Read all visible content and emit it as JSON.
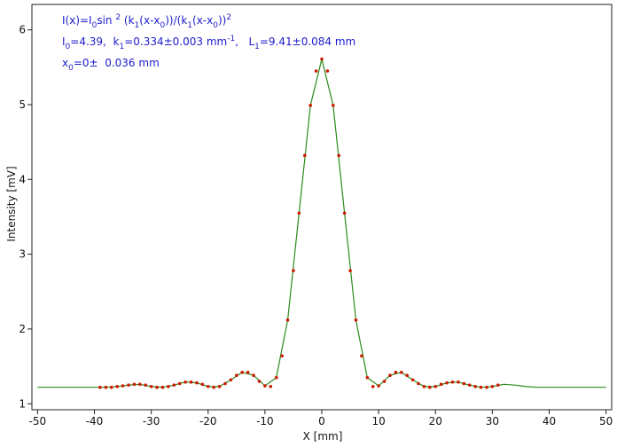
{
  "chart_data": {
    "type": "scatter",
    "xlabel": "X [mm]",
    "ylabel": "Intensity [mV]",
    "xlim": [
      -51,
      51
    ],
    "ylim": [
      0.92,
      6.34
    ],
    "xticks": [
      -50,
      -40,
      -30,
      -20,
      -10,
      0,
      10,
      20,
      30,
      40,
      50
    ],
    "yticks": [
      1,
      2,
      3,
      4,
      5,
      6
    ],
    "annotations": [
      [
        {
          "text": "I(x)=I"
        },
        {
          "text": "0",
          "shift": "sub"
        },
        {
          "text": "sin "
        },
        {
          "text": "2",
          "shift": "sup"
        },
        {
          "text": " (k"
        },
        {
          "text": "1",
          "shift": "sub"
        },
        {
          "text": "(x-x"
        },
        {
          "text": "0",
          "shift": "sub"
        },
        {
          "text": "))/(k"
        },
        {
          "text": "1",
          "shift": "sub"
        },
        {
          "text": "(x-x"
        },
        {
          "text": "0",
          "shift": "sub"
        },
        {
          "text": "))"
        },
        {
          "text": "2",
          "shift": "sup"
        }
      ],
      [
        {
          "text": "I"
        },
        {
          "text": "0",
          "shift": "sub"
        },
        {
          "text": "=4.39,  k"
        },
        {
          "text": "1",
          "shift": "sub"
        },
        {
          "text": "=0.334±0.003 mm"
        },
        {
          "text": "-1",
          "shift": "sup"
        },
        {
          "text": ",   L"
        },
        {
          "text": "1",
          "shift": "sub"
        },
        {
          "text": "=9.41±0.084 mm"
        }
      ],
      [
        {
          "text": "x"
        },
        {
          "text": "0",
          "shift": "sub"
        },
        {
          "text": "=0±  0.036 mm"
        }
      ]
    ],
    "text_color": "#1c1ccc",
    "series": [
      {
        "style": "line",
        "color": "#2b8a1c",
        "x": [
          -50,
          -48,
          -46,
          -44,
          -42,
          -40,
          -38,
          -36,
          -34,
          -32,
          -30,
          -28,
          -26,
          -24,
          -22,
          -20,
          -18,
          -16,
          -14,
          -12,
          -10,
          -8,
          -6,
          -4,
          -2,
          0,
          2,
          4,
          6,
          8,
          10,
          12,
          14,
          16,
          18,
          20,
          22,
          24,
          26,
          28,
          30,
          32,
          34,
          36,
          38,
          40,
          42,
          44,
          46,
          48,
          50
        ],
        "values": [
          1.22,
          1.22,
          1.22,
          1.22,
          1.22,
          1.22,
          1.22,
          1.23,
          1.25,
          1.26,
          1.23,
          1.22,
          1.25,
          1.29,
          1.28,
          1.23,
          1.23,
          1.32,
          1.42,
          1.38,
          1.24,
          1.35,
          2.12,
          3.55,
          4.99,
          5.61,
          4.99,
          3.55,
          2.12,
          1.35,
          1.24,
          1.38,
          1.42,
          1.32,
          1.23,
          1.23,
          1.28,
          1.29,
          1.25,
          1.22,
          1.23,
          1.26,
          1.25,
          1.23,
          1.22,
          1.22,
          1.22,
          1.22,
          1.22,
          1.22,
          1.22
        ]
      },
      {
        "style": "dots",
        "color": "#cc1a00",
        "x": [
          -39,
          -38,
          -37,
          -36,
          -35,
          -34,
          -33,
          -32,
          -31,
          -30,
          -29,
          -28,
          -27,
          -26,
          -25,
          -24,
          -23,
          -22,
          -21,
          -20,
          -19,
          -18,
          -17,
          -16,
          -15,
          -14,
          -13,
          -12,
          -11,
          -10,
          -9,
          -8,
          -7,
          -6,
          -5,
          -4,
          -3,
          -2,
          -1,
          0,
          1,
          2,
          3,
          4,
          5,
          6,
          7,
          8,
          9,
          10,
          11,
          12,
          13,
          14,
          15,
          16,
          17,
          18,
          19,
          20,
          21,
          22,
          23,
          24,
          25,
          26,
          27,
          28,
          29,
          30,
          31
        ],
        "values": [
          1.22,
          1.22,
          1.22,
          1.23,
          1.24,
          1.25,
          1.26,
          1.26,
          1.25,
          1.23,
          1.22,
          1.22,
          1.23,
          1.25,
          1.27,
          1.29,
          1.29,
          1.28,
          1.26,
          1.23,
          1.22,
          1.23,
          1.27,
          1.32,
          1.38,
          1.42,
          1.42,
          1.38,
          1.3,
          1.24,
          1.23,
          1.35,
          1.64,
          2.12,
          2.78,
          3.55,
          4.32,
          4.99,
          5.45,
          5.61,
          5.45,
          4.99,
          4.32,
          3.55,
          2.78,
          2.12,
          1.64,
          1.35,
          1.23,
          1.24,
          1.3,
          1.38,
          1.42,
          1.42,
          1.38,
          1.32,
          1.27,
          1.23,
          1.22,
          1.23,
          1.26,
          1.28,
          1.29,
          1.29,
          1.27,
          1.25,
          1.23,
          1.22,
          1.22,
          1.23,
          1.25
        ]
      }
    ]
  }
}
